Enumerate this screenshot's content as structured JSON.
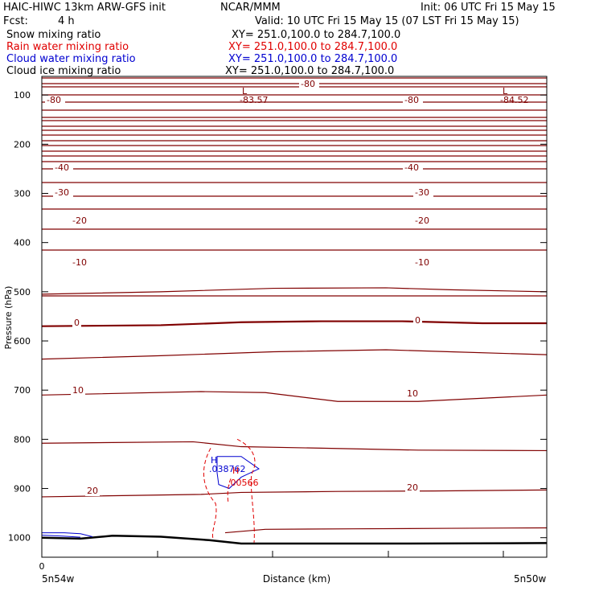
{
  "header": {
    "model": "HAIC-HIWC 13km ARW-GFS init",
    "org": "NCAR/MMM",
    "init": "Init: 06 UTC Fri 15 May 15",
    "fcst_label": "Fcst:",
    "fcst_value": "4 h",
    "valid": "Valid: 10 UTC Fri 15 May 15 (07 LST Fri 15 May 15)"
  },
  "fields": [
    {
      "name": "Snow mixing ratio",
      "xy": "XY= 251.0,100.0 to 284.7,100.0",
      "color": "#000000"
    },
    {
      "name": "Rain water mixing ratio",
      "xy": "XY= 251.0,100.0 to 284.7,100.0",
      "color": "#e00000"
    },
    {
      "name": "Cloud water mixing ratio",
      "xy": "XY= 251.0,100.0 to 284.7,100.0",
      "color": "#0000d0"
    },
    {
      "name": "Cloud ice mixing ratio",
      "xy": "XY= 251.0,100.0 to 284.7,100.0",
      "color": "#000000"
    }
  ],
  "chart_data": {
    "type": "line",
    "xlabel": "Distance (km)",
    "ylabel": "Pressure (hPa)",
    "x_ticks": [
      "0"
    ],
    "x_ends": [
      "5n54w",
      "5n50w"
    ],
    "ylim": [
      1050,
      70
    ],
    "y_ticks": [
      100,
      200,
      300,
      400,
      500,
      600,
      700,
      800,
      900,
      1000
    ],
    "colors": {
      "temp": "#800000",
      "rain": "#e00000",
      "cloud": "#0000d0",
      "terrain": "#000000"
    },
    "isotherm_labels": [
      "-80",
      "-40",
      "-30",
      "-20",
      "-10",
      "0",
      "10",
      "20"
    ],
    "extremes": [
      {
        "kind": "L",
        "value": "-83.57",
        "field": "temperature"
      },
      {
        "kind": "L",
        "value": "-84.52",
        "field": "temperature"
      },
      {
        "kind": "H",
        "value": ".038762",
        "field": "cloud water"
      },
      {
        "kind": "H",
        "value": ".00566",
        "field": "rain water"
      }
    ]
  }
}
